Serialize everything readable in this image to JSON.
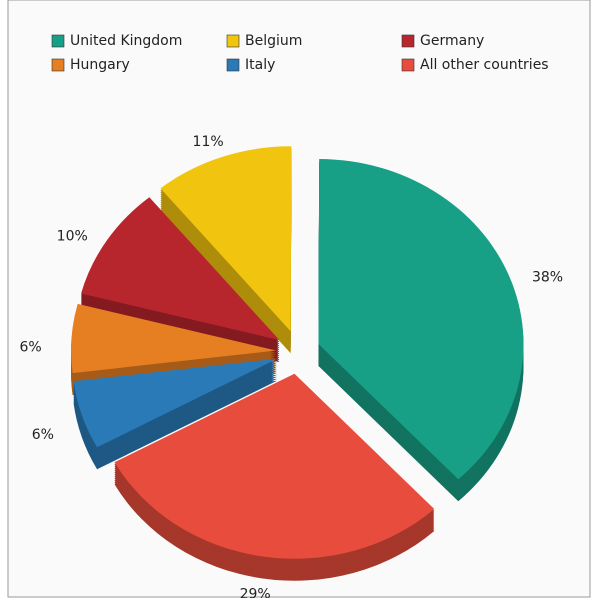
{
  "chart_data": {
    "type": "pie",
    "three_d": true,
    "exploded": true,
    "categories": [
      "United Kingdom",
      "Belgium",
      "Germany",
      "Hungary",
      "Italy",
      "All other countries"
    ],
    "values": [
      38,
      11,
      10,
      6,
      6,
      29
    ],
    "value_labels": [
      "38%",
      "11%",
      "10%",
      "6%",
      "6%",
      "29%"
    ],
    "colors": [
      "#17a086",
      "#f1c40f",
      "#b8262d",
      "#e67e22",
      "#2a7ab8",
      "#e74c3c"
    ],
    "legend": "top"
  }
}
